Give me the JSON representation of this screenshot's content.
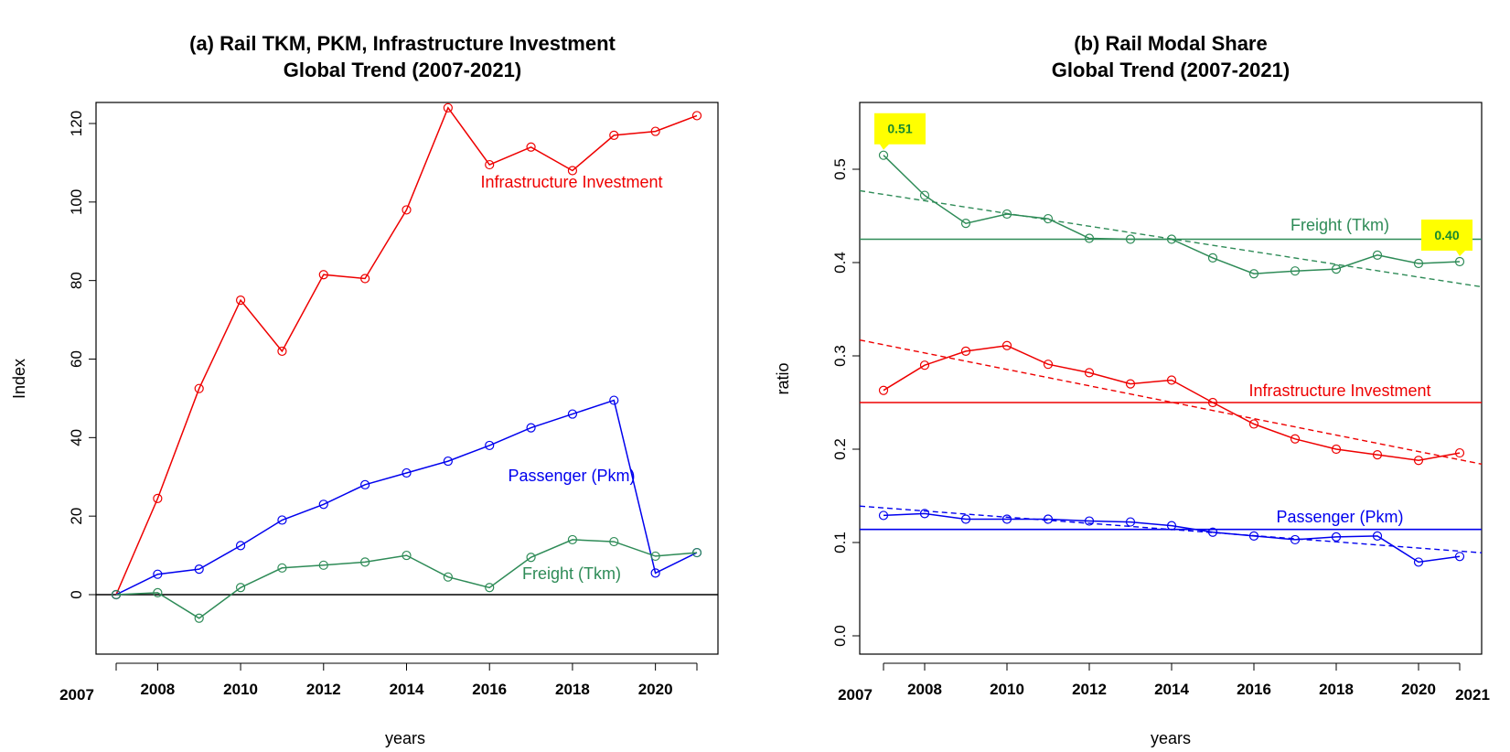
{
  "colors": {
    "freight": "#2e8b57",
    "passenger": "#0000ee",
    "infrastructure": "#ee0000",
    "callout_bg": "#ffff00",
    "callout_text": "#1a8a2e"
  },
  "chart_data": [
    {
      "type": "line",
      "title_line1": "(a) Rail TKM, PKM, Infrastructure Investment",
      "title_line2": "Global Trend (2007-2021)",
      "xlabel": "years",
      "ylabel": "Index",
      "xlim": [
        2007,
        2021
      ],
      "ylim": [
        -15,
        125
      ],
      "x_ticks": [
        2008,
        2010,
        2012,
        2014,
        2016,
        2018,
        2020
      ],
      "x_extra_label": "2007",
      "y_ticks": [
        0,
        20,
        40,
        60,
        80,
        100,
        120
      ],
      "reference_lines": [
        0
      ],
      "x": [
        2007,
        2008,
        2009,
        2010,
        2011,
        2012,
        2013,
        2014,
        2015,
        2016,
        2017,
        2018,
        2019,
        2020,
        2021
      ],
      "series": [
        {
          "name": "Infrastructure Investment",
          "color_key": "infrastructure",
          "values": [
            0,
            24.5,
            52.5,
            75,
            62,
            81.5,
            80.5,
            98,
            124,
            109.5,
            114,
            108,
            117,
            118,
            122
          ]
        },
        {
          "name": "Passenger (Pkm)",
          "color_key": "passenger",
          "values": [
            0,
            5.2,
            6.5,
            12.5,
            19,
            23,
            28,
            31,
            34,
            38,
            42.5,
            46,
            49.5,
            5.5,
            10.7
          ]
        },
        {
          "name": "Freight (Tkm)",
          "color_key": "freight",
          "values": [
            0,
            0.5,
            -6,
            1.8,
            6.8,
            7.5,
            8.3,
            10,
            4.5,
            1.8,
            9.5,
            14,
            13.5,
            9.8,
            10.7
          ]
        }
      ]
    },
    {
      "type": "line",
      "title_line1": "(b) Rail Modal Share",
      "title_line2": "Global Trend (2007-2021)",
      "xlabel": "years",
      "ylabel": "ratio",
      "xlim": [
        2007,
        2021
      ],
      "ylim": [
        0,
        0.57
      ],
      "x_ticks": [
        2008,
        2010,
        2012,
        2014,
        2016,
        2018,
        2020
      ],
      "x_extra_labels": [
        "2007",
        "2021"
      ],
      "y_ticks": [
        "0.0",
        "0.1",
        "0.2",
        "0.3",
        "0.4",
        "0.5"
      ],
      "x": [
        2007,
        2008,
        2009,
        2010,
        2011,
        2012,
        2013,
        2014,
        2015,
        2016,
        2017,
        2018,
        2019,
        2020,
        2021
      ],
      "series": [
        {
          "name": "Freight (Tkm)",
          "color_key": "freight",
          "values": [
            0.515,
            0.472,
            0.442,
            0.452,
            0.447,
            0.426,
            0.425,
            0.425,
            0.405,
            0.388,
            0.391,
            0.393,
            0.408,
            0.399,
            0.401
          ],
          "mean": 0.425,
          "trend": [
            0.477,
            0.374
          ]
        },
        {
          "name": "Infrastructure Investment",
          "color_key": "infrastructure",
          "values": [
            0.263,
            0.29,
            0.305,
            0.311,
            0.291,
            0.282,
            0.27,
            0.274,
            0.25,
            0.227,
            0.211,
            0.2,
            0.194,
            0.188,
            0.196
          ],
          "mean": 0.25,
          "trend": [
            0.317,
            0.184
          ]
        },
        {
          "name": "Passenger (Pkm)",
          "color_key": "passenger",
          "values": [
            0.129,
            0.131,
            0.125,
            0.125,
            0.125,
            0.123,
            0.122,
            0.118,
            0.111,
            0.107,
            0.103,
            0.106,
            0.107,
            0.079,
            0.085
          ],
          "mean": 0.114,
          "trend": [
            0.139,
            0.089
          ]
        }
      ],
      "callouts": [
        {
          "text": "0.51",
          "x": 2007,
          "y": 0.515
        },
        {
          "text": "0.40",
          "x": 2021,
          "y": 0.401
        }
      ]
    }
  ]
}
